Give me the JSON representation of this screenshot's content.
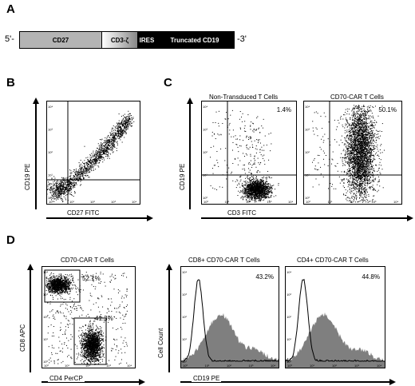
{
  "panels": {
    "A": {
      "letter": "A",
      "five_prime": "5'-",
      "three_prime": "-3'",
      "segments": [
        "CD27",
        "CD3-ζ",
        "IRES",
        "Truncated CD19"
      ]
    },
    "B": {
      "letter": "B",
      "xlabel": "CD27 FITC",
      "ylabel": "CD19 PE"
    },
    "C": {
      "letter": "C",
      "xlabel": "CD3 FITC",
      "ylabel": "CD19 PE",
      "plots": [
        {
          "title": "Non-Transduced T Cells",
          "percent": "1.4%"
        },
        {
          "title": "CD70-CAR T Cells",
          "percent": "50.1%"
        }
      ]
    },
    "D": {
      "letter": "D",
      "scatter_title": "CD70-CAR T Cells",
      "scatter_xlabel": "CD4 PerCP",
      "scatter_ylabel": "CD8 APC",
      "gate_cd8_percent": "52.1%",
      "gate_cd4_percent": "41.3%",
      "hist_ylabel": "Cell Count",
      "hist_xlabel": "CD19 PE",
      "histograms": [
        {
          "title": "CD8+ CD70-CAR T Cells",
          "percent": "43.2%"
        },
        {
          "title": "CD4+ CD70-CAR T Cells",
          "percent": "44.8%"
        }
      ]
    }
  },
  "ticks": [
    "10⁰",
    "10¹",
    "10²",
    "10³",
    "10⁴"
  ],
  "colors": {
    "cd27_segment": "#b4b4b4",
    "ires_segment": "#000000",
    "fill_histogram": "#7f7f7f"
  }
}
